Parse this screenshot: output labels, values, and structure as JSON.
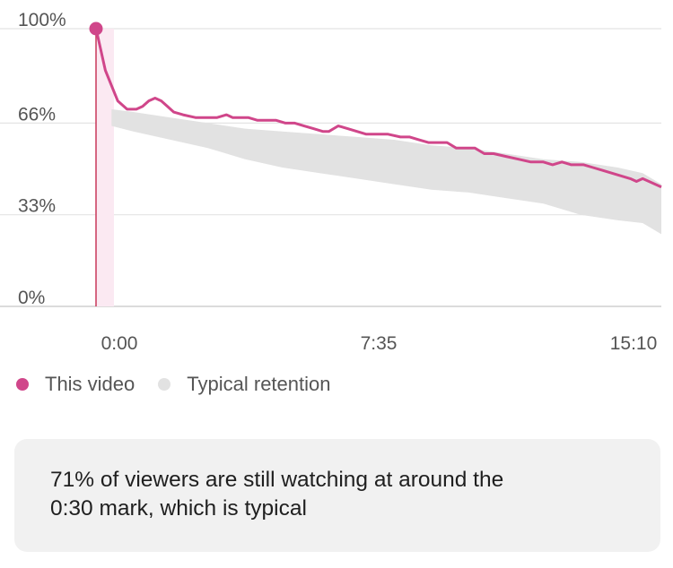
{
  "chart_data": {
    "type": "line",
    "x_ticks": [
      "0:00",
      "7:35",
      "15:10"
    ],
    "y_ticks": [
      "0%",
      "33%",
      "66%",
      "100%"
    ],
    "ylim": [
      0,
      100
    ],
    "xlim_seconds": [
      0,
      910
    ],
    "grid": true,
    "legend_position": "bottom-left",
    "series": [
      {
        "name": "This video",
        "color": "#d0468a",
        "x": [
          0,
          5,
          15,
          35,
          50,
          65,
          75,
          85,
          95,
          105,
          115,
          125,
          140,
          160,
          180,
          195,
          210,
          220,
          230,
          245,
          260,
          275,
          290,
          305,
          320,
          335,
          350,
          365,
          375,
          390,
          405,
          420,
          435,
          450,
          470,
          490,
          505,
          520,
          535,
          550,
          565,
          580,
          595,
          610,
          625,
          640,
          660,
          680,
          700,
          720,
          735,
          750,
          765,
          785,
          800,
          815,
          830,
          845,
          860,
          870,
          880,
          890,
          900,
          910
        ],
        "values": [
          100,
          95,
          85,
          74,
          71,
          71,
          72,
          74,
          75,
          74,
          72,
          70,
          69,
          68,
          68,
          68,
          69,
          68,
          68,
          68,
          67,
          67,
          67,
          66,
          66,
          65,
          64,
          63,
          63,
          65,
          64,
          63,
          62,
          62,
          62,
          61,
          61,
          60,
          59,
          59,
          59,
          57,
          57,
          57,
          55,
          55,
          54,
          53,
          52,
          52,
          51,
          52,
          51,
          51,
          50,
          49,
          48,
          47,
          46,
          45,
          46,
          45,
          44,
          43
        ]
      },
      {
        "name": "Typical retention",
        "color": "#e2e2e2",
        "x": [
          25,
          60,
          120,
          180,
          240,
          300,
          360,
          420,
          480,
          540,
          600,
          660,
          720,
          780,
          840,
          880,
          910
        ],
        "upper": [
          71,
          70,
          68,
          66,
          64,
          63,
          62,
          61,
          60,
          58,
          57,
          55,
          53,
          52,
          50,
          48,
          44
        ],
        "lower": [
          65,
          63,
          60,
          57,
          53,
          50,
          48,
          46,
          44,
          42,
          41,
          39,
          37,
          33,
          31,
          30,
          26
        ]
      }
    ]
  },
  "legend": {
    "items": [
      {
        "label": "This video",
        "color": "#d0468a"
      },
      {
        "label": "Typical retention",
        "color": "#e2e2e2"
      }
    ]
  },
  "insight": {
    "line1": "71% of viewers are still watching at around the",
    "line2": "0:30 mark, which is typical"
  }
}
